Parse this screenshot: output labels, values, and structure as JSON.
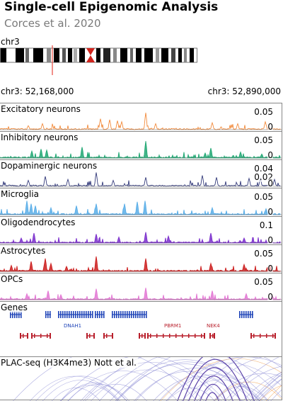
{
  "header": {
    "title": "Single-cell Epigenomic Analysis",
    "subtitle": "Corces et al. 2020"
  },
  "ideogram": {
    "chromosome": "chr3",
    "highlight_color": "#e8453c",
    "centromere_color": "#d0241d"
  },
  "region": {
    "start_label": "chr3: 52,168,000",
    "end_label": "chr3: 52,890,000"
  },
  "tracks": [
    {
      "name": "Excitatory neurons",
      "color": "#f28b3c",
      "ticks": [
        "0.05",
        "0"
      ]
    },
    {
      "name": "Inhibitory neurons",
      "color": "#22a874",
      "ticks": [
        "0.05",
        "0"
      ]
    },
    {
      "name": "Dopaminergic neurons",
      "color": "#333a7a",
      "ticks": [
        "0.04",
        "0.02",
        "0"
      ]
    },
    {
      "name": "Microglia",
      "color": "#5aaee8",
      "ticks": [
        "0.05",
        "0"
      ]
    },
    {
      "name": "Oligodendrocytes",
      "color": "#7b2fcc",
      "ticks": [
        "0.1",
        "0"
      ]
    },
    {
      "name": "Astrocytes",
      "color": "#cc1f1f",
      "ticks": [
        "0.05",
        "0"
      ]
    },
    {
      "name": "OPCs",
      "color": "#e378d4",
      "ticks": [
        "0.05",
        "0"
      ]
    }
  ],
  "genes": {
    "label": "Genes",
    "plus_strand_color": "#1f44b8",
    "minus_strand_color": "#b81f2b",
    "visible_names": [
      "DNAH1",
      "PBRM1",
      "NEK4"
    ]
  },
  "plac": {
    "label": "PLAC-seq (H3K4me3) Nott et al.",
    "arc_color": "#8f8fd6",
    "highlight_arc_color": "#f2a65a"
  }
}
